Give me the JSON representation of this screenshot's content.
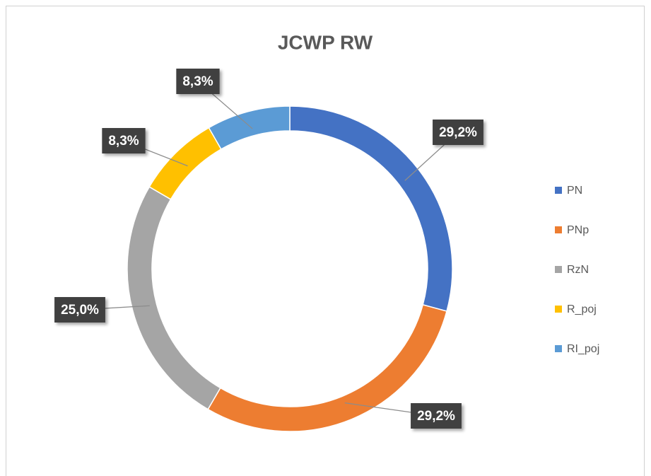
{
  "chart_data": {
    "type": "pie",
    "title": "JCWP RW",
    "categories": [
      "PN",
      "PNp",
      "RzN",
      "R_poj",
      "RI_poj"
    ],
    "values": [
      29.2,
      29.2,
      25.0,
      8.3,
      8.3
    ],
    "value_labels": [
      "29,2%",
      "29,2%",
      "25,0%",
      "8,3%",
      "8,3%"
    ],
    "colors": [
      "#4472c4",
      "#ed7d31",
      "#a5a5a5",
      "#ffc000",
      "#5b9bd5"
    ],
    "legend": "right"
  }
}
